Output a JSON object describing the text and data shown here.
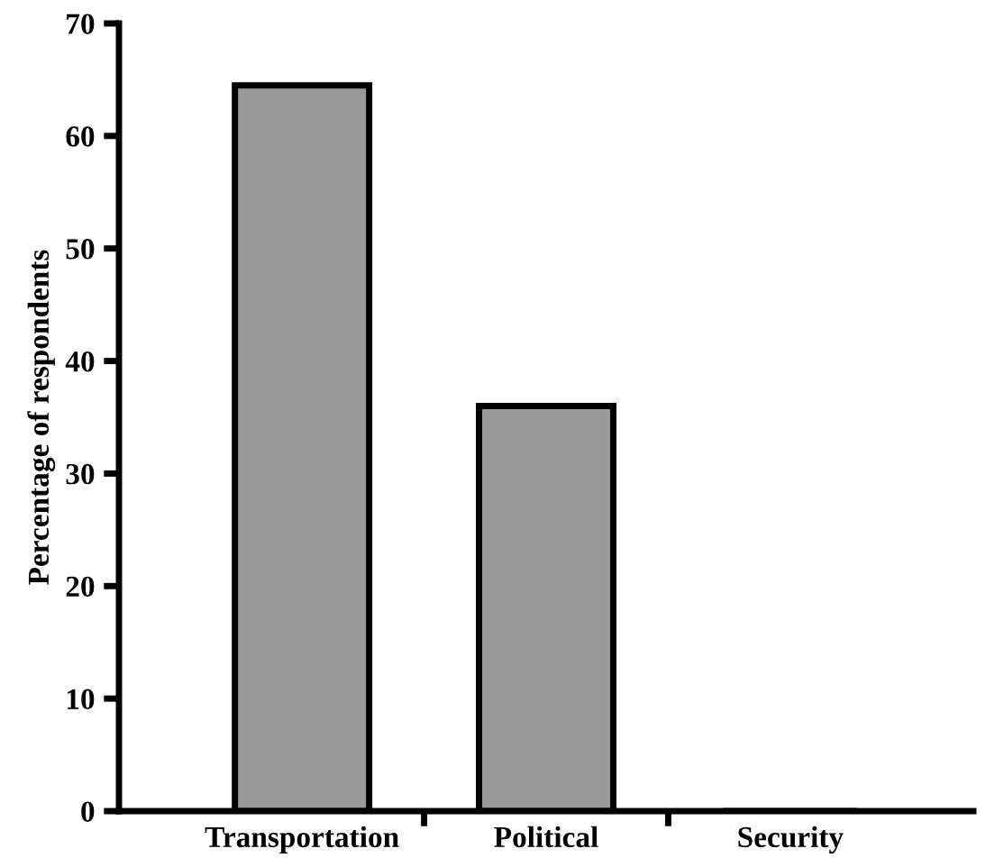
{
  "chart_data": {
    "type": "bar",
    "ylabel": "Percentage of respondents",
    "categories": [
      "Transportation",
      "Political",
      "Security"
    ],
    "values": [
      64.5,
      36,
      0
    ],
    "color": "#999999",
    "ylim": [
      0,
      70
    ],
    "yticks": [
      0,
      10,
      20,
      30,
      40,
      50,
      60,
      70
    ],
    "grid": false
  }
}
